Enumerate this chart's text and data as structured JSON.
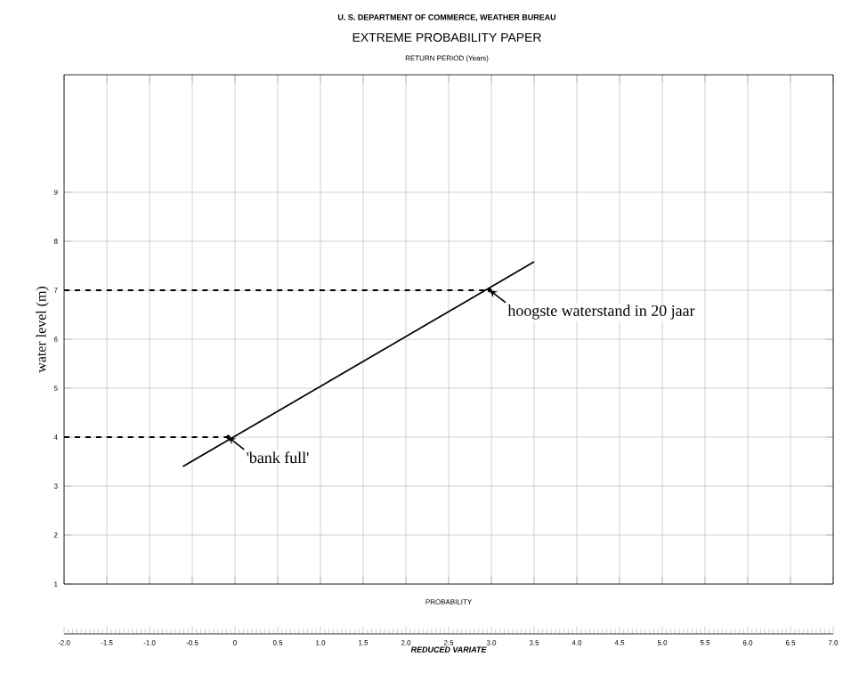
{
  "chart_data": {
    "type": "line",
    "title": "EXTREME PROBABILITY PAPER",
    "subtitle": "U. S. DEPARTMENT OF COMMERCE, WEATHER BUREAU",
    "xlabel": "REDUCED VARIATE",
    "ylabel": "water level (m)",
    "x2label": "RETURN PERIOD (Years)",
    "series": [
      {
        "color": "#000000",
        "line_style": "solid",
        "x": [
          -0.61,
          3.5
        ],
        "values": [
          3.4,
          7.58
        ]
      },
      {
        "color": "#000000",
        "line_style": "dashed",
        "x": [
          -2,
          -0.08
        ],
        "values": [
          4,
          4
        ]
      },
      {
        "color": "#000000",
        "line_style": "dashed",
        "x": [
          -2,
          2.98
        ],
        "values": [
          7,
          7
        ]
      }
    ],
    "xlim": [
      -2,
      7
    ],
    "xticks": [
      {
        "value": -2,
        "label": "-2.0"
      },
      {
        "value": -1.5,
        "label": "-1.5"
      },
      {
        "value": -1,
        "label": "-1.0"
      },
      {
        "value": -0.5,
        "label": "-0.5"
      },
      0,
      0.5,
      {
        "value": 1,
        "label": "1.0"
      },
      1.5,
      {
        "value": 2,
        "label": "2.0"
      },
      2.5,
      {
        "value": 3,
        "label": "3.0"
      },
      3.5,
      {
        "value": 4,
        "label": "4.0"
      },
      4.5,
      {
        "value": 5,
        "label": "5.0"
      },
      5.5,
      {
        "value": 6,
        "label": "6.0"
      },
      6.5,
      {
        "value": 7,
        "label": "7.0"
      }
    ],
    "ylim": [
      1,
      11.4
    ],
    "yticks": [
      1,
      2,
      3,
      4,
      5,
      6,
      7,
      8,
      9
    ],
    "grid": true,
    "annotations": [
      {
        "text": "'bank full'",
        "x": -0.08,
        "y": 4
      },
      {
        "text": "hoogste waterstand in 20 jaar",
        "x": 2.98,
        "y": 7
      },
      "PROBABILITY"
    ]
  }
}
